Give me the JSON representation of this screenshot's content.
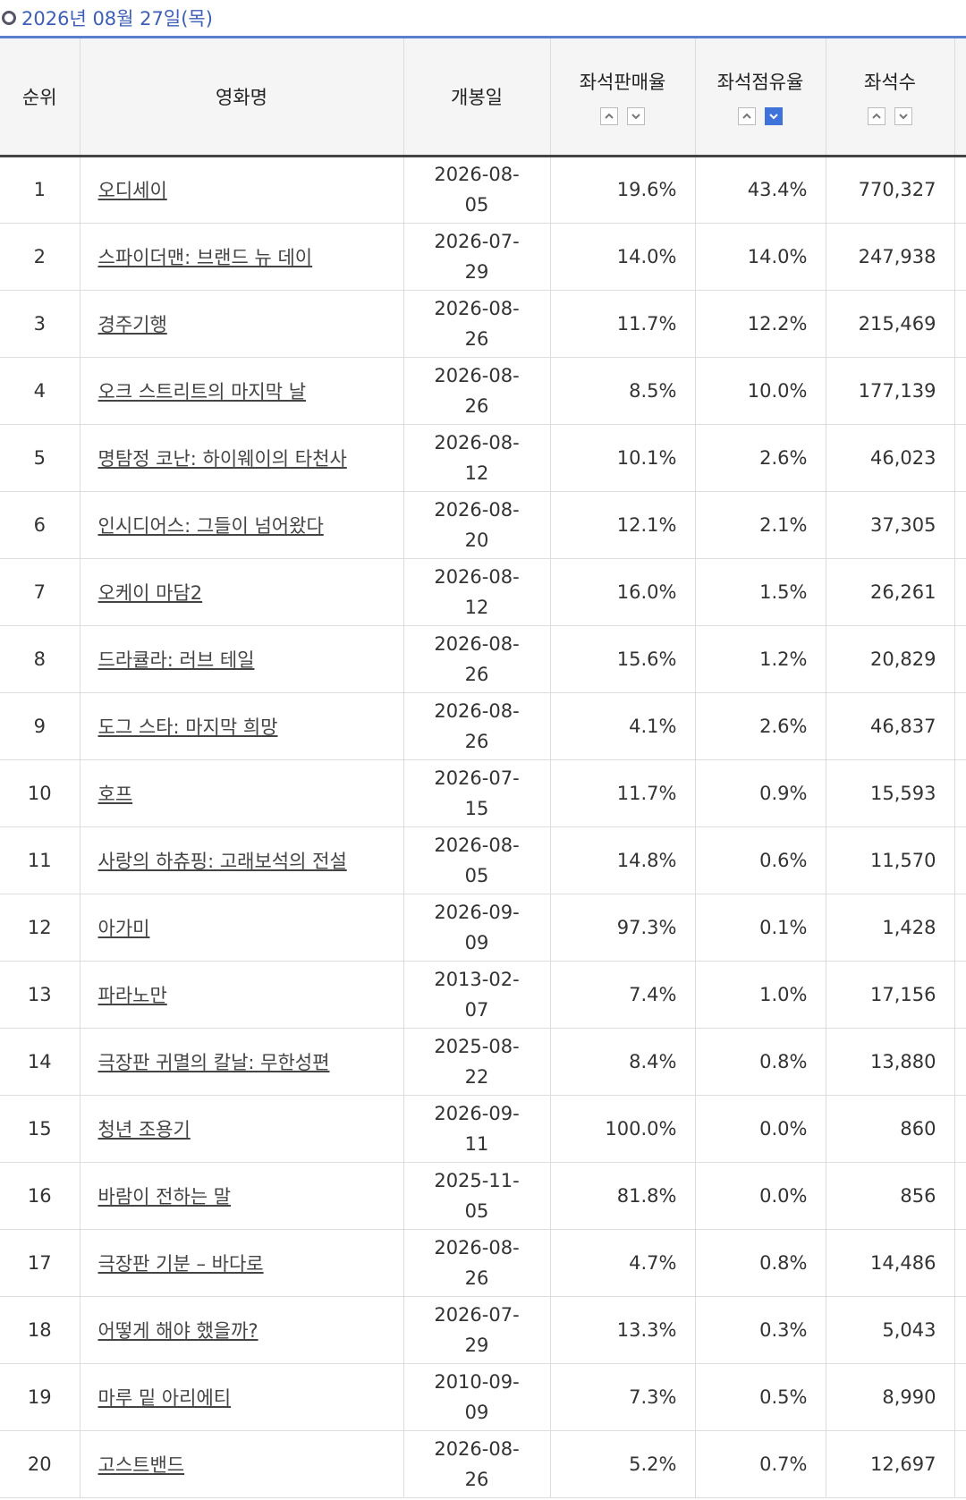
{
  "header": {
    "date": "2026년 08월 27일(목)"
  },
  "table": {
    "columns": [
      "순위",
      "영화명",
      "개봉일",
      "좌석판매율",
      "좌석점유율",
      "좌석수"
    ],
    "rows": [
      [
        "1",
        "오디세이",
        "2026-08-05",
        "19.6%",
        "43.4%",
        "770,327"
      ],
      [
        "2",
        "스파이더맨: 브랜드 뉴 데이",
        "2026-07-29",
        "14.0%",
        "14.0%",
        "247,938"
      ],
      [
        "3",
        "경주기행",
        "2026-08-26",
        "11.7%",
        "12.2%",
        "215,469"
      ],
      [
        "4",
        "오크 스트리트의 마지막 날",
        "2026-08-26",
        "8.5%",
        "10.0%",
        "177,139"
      ],
      [
        "5",
        "명탐정 코난: 하이웨이의 타천사",
        "2026-08-12",
        "10.1%",
        "2.6%",
        "46,023"
      ],
      [
        "6",
        "인시디어스: 그들이 넘어왔다",
        "2026-08-20",
        "12.1%",
        "2.1%",
        "37,305"
      ],
      [
        "7",
        "오케이 마담2",
        "2026-08-12",
        "16.0%",
        "1.5%",
        "26,261"
      ],
      [
        "8",
        "드라큘라: 러브 테일",
        "2026-08-26",
        "15.6%",
        "1.2%",
        "20,829"
      ],
      [
        "9",
        "도그 스타: 마지막 희망",
        "2026-08-26",
        "4.1%",
        "2.6%",
        "46,837"
      ],
      [
        "10",
        "호프",
        "2026-07-15",
        "11.7%",
        "0.9%",
        "15,593"
      ],
      [
        "11",
        "사랑의 하츄핑: 고래보석의 전설",
        "2026-08-05",
        "14.8%",
        "0.6%",
        "11,570"
      ],
      [
        "12",
        "아가미",
        "2026-09-09",
        "97.3%",
        "0.1%",
        "1,428"
      ],
      [
        "13",
        "파라노만",
        "2013-02-07",
        "7.4%",
        "1.0%",
        "17,156"
      ],
      [
        "14",
        "극장판 귀멸의 칼날: 무한성편",
        "2025-08-22",
        "8.4%",
        "0.8%",
        "13,880"
      ],
      [
        "15",
        "청년 조용기",
        "2026-09-11",
        "100.0%",
        "0.0%",
        "860"
      ],
      [
        "16",
        "바람이 전하는 말",
        "2025-11-05",
        "81.8%",
        "0.0%",
        "856"
      ],
      [
        "17",
        "극장판 기분 – 바다로",
        "2026-08-26",
        "4.7%",
        "0.8%",
        "14,486"
      ],
      [
        "18",
        "어떻게 해야 했을까?",
        "2026-07-29",
        "13.3%",
        "0.3%",
        "5,043"
      ],
      [
        "19",
        "마루 밑 아리에티",
        "2010-09-09",
        "7.3%",
        "0.5%",
        "8,990"
      ],
      [
        "20",
        "고스트밴드",
        "2026-08-26",
        "5.2%",
        "0.7%",
        "12,697"
      ]
    ]
  }
}
